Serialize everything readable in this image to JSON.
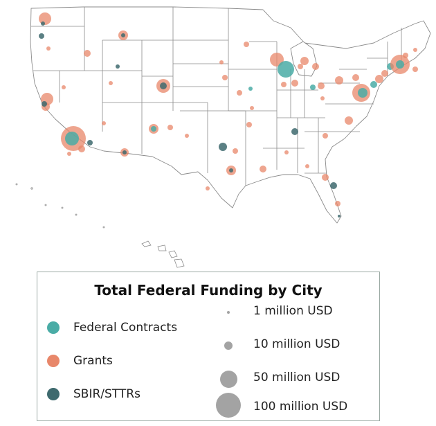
{
  "legend": {
    "title": "Total Federal Funding by City",
    "categories": [
      {
        "label": "Federal Contracts",
        "color": "#4aaca6"
      },
      {
        "label": "Grants",
        "color": "#e8876a"
      },
      {
        "label": "SBIR/STTRs",
        "color": "#3e6a6e"
      }
    ],
    "sizes": [
      {
        "label": "1 million USD",
        "value_musd": 1
      },
      {
        "label": "10 million USD",
        "value_musd": 10
      },
      {
        "label": "50 million USD",
        "value_musd": 50
      },
      {
        "label": "100 million USD",
        "value_musd": 100
      }
    ]
  },
  "colors": {
    "state_fill": "#ffffff",
    "state_border": "#8a8a8a",
    "contracts": "#4aaca6",
    "grants": "#e8876a",
    "sbir": "#3e6a6e"
  }
}
